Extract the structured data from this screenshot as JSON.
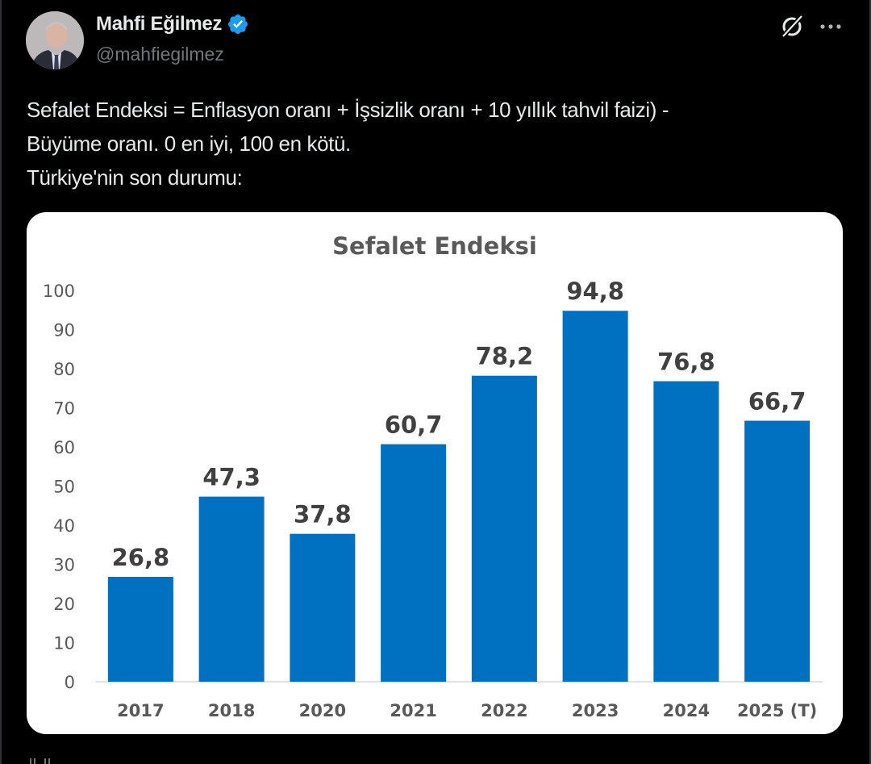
{
  "author": {
    "name": "Mahfi Eğilmez",
    "handle": "@mahfiegilmez",
    "verified": true,
    "verified_color": "#1d9bf0"
  },
  "actions": {
    "grok_icon": "grok-icon",
    "more_icon": "more-icon"
  },
  "tweet": {
    "lines": [
      "Sefalet Endeksi = Enflasyon oranı + İşsizlik oranı + 10 yıllık tahvil faizi) -",
      "Büyüme oranı. 0 en iyi, 100 en kötü.",
      "Türkiye'nin son durumu:"
    ]
  },
  "chart_data": {
    "type": "bar",
    "title": "Sefalet Endeksi",
    "categories": [
      "2017",
      "2018",
      "2020",
      "2021",
      "2022",
      "2023",
      "2024",
      "2025 (T)"
    ],
    "values": [
      26.8,
      47.3,
      37.8,
      60.7,
      78.2,
      94.8,
      76.8,
      66.7
    ],
    "data_labels": [
      "26,8",
      "47,3",
      "37,8",
      "60,7",
      "78,2",
      "94,8",
      "76,8",
      "66,7"
    ],
    "yticks": [
      0,
      10,
      20,
      30,
      40,
      50,
      60,
      70,
      80,
      90,
      100
    ],
    "ylim": [
      0,
      100
    ],
    "xlabel": "",
    "ylabel": "",
    "grid": false,
    "legend": "none",
    "bar_color": "#0070c0"
  }
}
